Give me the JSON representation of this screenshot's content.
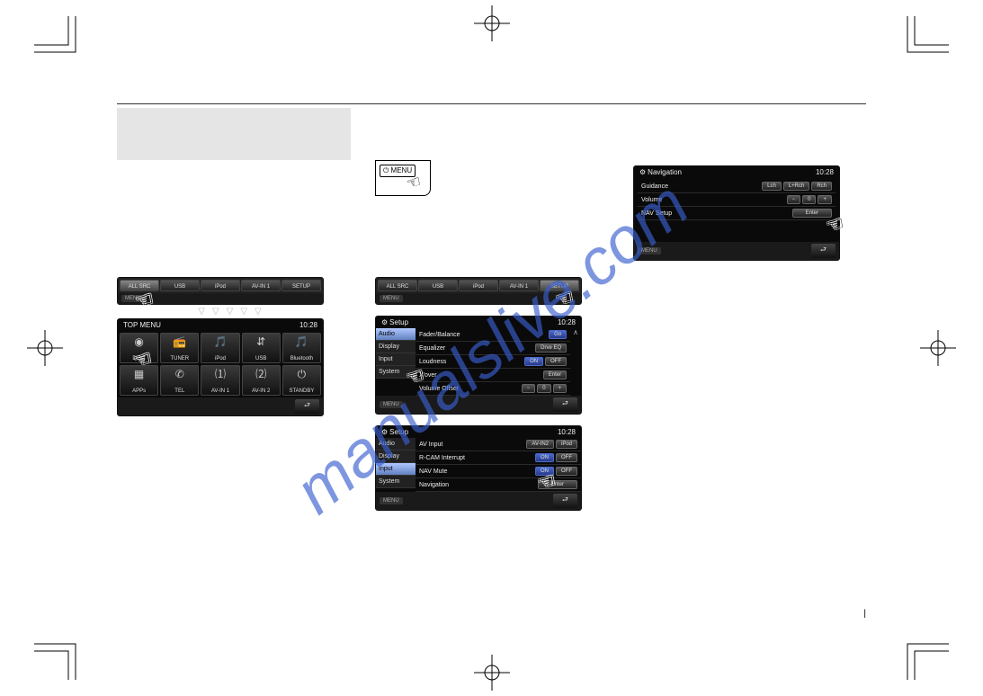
{
  "watermark": "manualslive.com",
  "pagenum": "|",
  "time": "10:28",
  "col1": {
    "tabstrip": [
      "ALL SRC",
      "USB",
      "iPod",
      "AV-IN 1",
      "SETUP"
    ],
    "topmenu_title": "TOP MENU",
    "menu_label": "MENU",
    "icons": [
      {
        "label": "DISC",
        "glyph": "◉"
      },
      {
        "label": "TUNER",
        "glyph": "📻"
      },
      {
        "label": "iPod",
        "glyph": "🎵"
      },
      {
        "label": "USB",
        "glyph": "⇵"
      },
      {
        "label": "Bluetooth",
        "glyph": "🎵"
      },
      {
        "label": "APPs",
        "glyph": "▦"
      },
      {
        "label": "TEL",
        "glyph": "✆"
      },
      {
        "label": "AV-IN 1",
        "glyph": "⑴"
      },
      {
        "label": "AV-IN 2",
        "glyph": "⑵"
      },
      {
        "label": "STANDBY",
        "glyph": "⏻"
      }
    ]
  },
  "col2": {
    "menubtn": "⏻ MENU",
    "tabstrip": [
      "ALL SRC",
      "USB",
      "iPod",
      "AV-IN 1",
      "SETUP"
    ],
    "menu_label": "MENU",
    "setup_title": "Setup",
    "audio_side": [
      "Audio",
      "Display",
      "Input",
      "System"
    ],
    "audio_rows": [
      {
        "label": "Fader/Balance",
        "btns": [
          {
            "t": "Go",
            "c": "blue"
          }
        ]
      },
      {
        "label": "Equalizer",
        "btns": [
          {
            "t": "Drve EQ",
            "c": ""
          }
        ]
      },
      {
        "label": "Loudness",
        "btns": [
          {
            "t": "ON",
            "c": "blue"
          },
          {
            "t": "OFF",
            "c": ""
          }
        ]
      },
      {
        "label": "X'over",
        "btns": [
          {
            "t": "Enter",
            "c": ""
          }
        ]
      },
      {
        "label": "Volume Offset",
        "btns": [
          {
            "t": "−",
            "c": ""
          },
          {
            "t": "0",
            "c": ""
          },
          {
            "t": "+",
            "c": ""
          }
        ]
      }
    ],
    "input_side": [
      "Audio",
      "Display",
      "Input",
      "System"
    ],
    "input_rows": [
      {
        "label": "AV Input",
        "btns": [
          {
            "t": "AV-IN2",
            "c": ""
          },
          {
            "t": "iPod",
            "c": ""
          }
        ]
      },
      {
        "label": "R-CAM Interrupt",
        "btns": [
          {
            "t": "ON",
            "c": "blue"
          },
          {
            "t": "OFF",
            "c": ""
          }
        ]
      },
      {
        "label": "NAV Mute",
        "btns": [
          {
            "t": "ON",
            "c": "blue"
          },
          {
            "t": "OFF",
            "c": ""
          }
        ]
      },
      {
        "label": "Navigation",
        "btns": [
          {
            "t": "Enter",
            "c": "wide"
          }
        ]
      }
    ]
  },
  "col3": {
    "nav_title": "Navigation",
    "menu_label": "MENU",
    "nav_rows": [
      {
        "label": "Guidance",
        "btns": [
          {
            "t": "Lch",
            "c": ""
          },
          {
            "t": "L+Rch",
            "c": ""
          },
          {
            "t": "Rch",
            "c": ""
          }
        ]
      },
      {
        "label": "Volume",
        "btns": [
          {
            "t": "−",
            "c": ""
          },
          {
            "t": "0",
            "c": ""
          },
          {
            "t": "+",
            "c": ""
          }
        ]
      },
      {
        "label": "NAV Setup",
        "btns": [
          {
            "t": "Enter",
            "c": "wide"
          }
        ]
      }
    ]
  }
}
